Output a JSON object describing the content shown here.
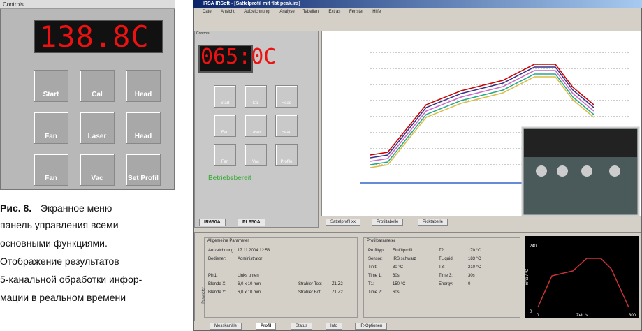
{
  "left_panel": {
    "title": "Controls",
    "display": "138.8C",
    "buttons": [
      "Start",
      "Cal",
      "Head",
      "Fan",
      "Laser",
      "Head",
      "Fan",
      "Vac",
      "Set Profil"
    ]
  },
  "caption": {
    "label": "Рис. 8.",
    "lines": [
      "Экранное меню —",
      "панель управления всеми",
      "основными функциями.",
      "Отображение результатов",
      "5-канальной обработки инфор-",
      "мации в реальном времени"
    ]
  },
  "window": {
    "title": "IRSA IRSoft - [Sattelprofil mit flat peak.irs]",
    "menu": [
      "Datei",
      "Ansicht",
      "Aufzeichnung",
      "Analyse",
      "Tabellen",
      "Extras",
      "Fenster",
      "Hilfe"
    ],
    "controls": {
      "title": "Controls",
      "display": "065:0C",
      "buttons": [
        "Start",
        "Cal",
        "Head",
        "Fan",
        "Laser",
        "Head",
        "Fan",
        "Vac",
        "Profile"
      ],
      "status": "Betriebsbereit",
      "tabs": [
        "IR650A",
        "PL650A"
      ]
    },
    "chart_tabs": [
      "Sattelprofil xx",
      "Profiltabelle",
      "Picktabelle"
    ],
    "side_label": "Parameter",
    "general": {
      "title": "Allgemeine Parameter",
      "fields": [
        [
          "Aufzeichnung:",
          "17.11.2004 12:53"
        ],
        [
          "Bediener:",
          "Administrator"
        ],
        [
          "Pin1:",
          "Links unten"
        ],
        [
          "Blende X:",
          "6,0 x 10 mm"
        ],
        [
          "Blende Y:",
          "6,0 x 10 mm"
        ]
      ],
      "extra": [
        [
          "Strahler Top:",
          "Z1 Z2"
        ],
        [
          "Strahler Bot:",
          "Z1 Z2"
        ]
      ]
    },
    "profile": {
      "title": "Profilparameter",
      "fields": [
        [
          "Profiltyp:",
          "Einlötprofil"
        ],
        [
          "Sensor:",
          "IRS schwarz"
        ],
        [
          "Tinit:",
          "30 °C"
        ],
        [
          "Time 1:",
          "60s"
        ],
        [
          "T1:",
          "150 °C"
        ],
        [
          "Time 2:",
          "60s"
        ]
      ],
      "fields2": [
        [
          "T2:",
          "170 °C"
        ],
        [
          "TLiquid:",
          "183 °C"
        ],
        [
          "T3:",
          "210 °C"
        ],
        [
          "Time 3:",
          "30s"
        ],
        [
          "Energy:",
          "0"
        ]
      ]
    },
    "mini_chart": {
      "y_label": "Temp / °C",
      "x_label": "Zeit /s",
      "ymax": "240",
      "ymin": "0",
      "xmin": "0",
      "xmax": "300"
    },
    "bottom_tabs": [
      "Messkanäle",
      "Profil",
      "Status",
      "Info",
      "IR-Optionen"
    ]
  }
}
